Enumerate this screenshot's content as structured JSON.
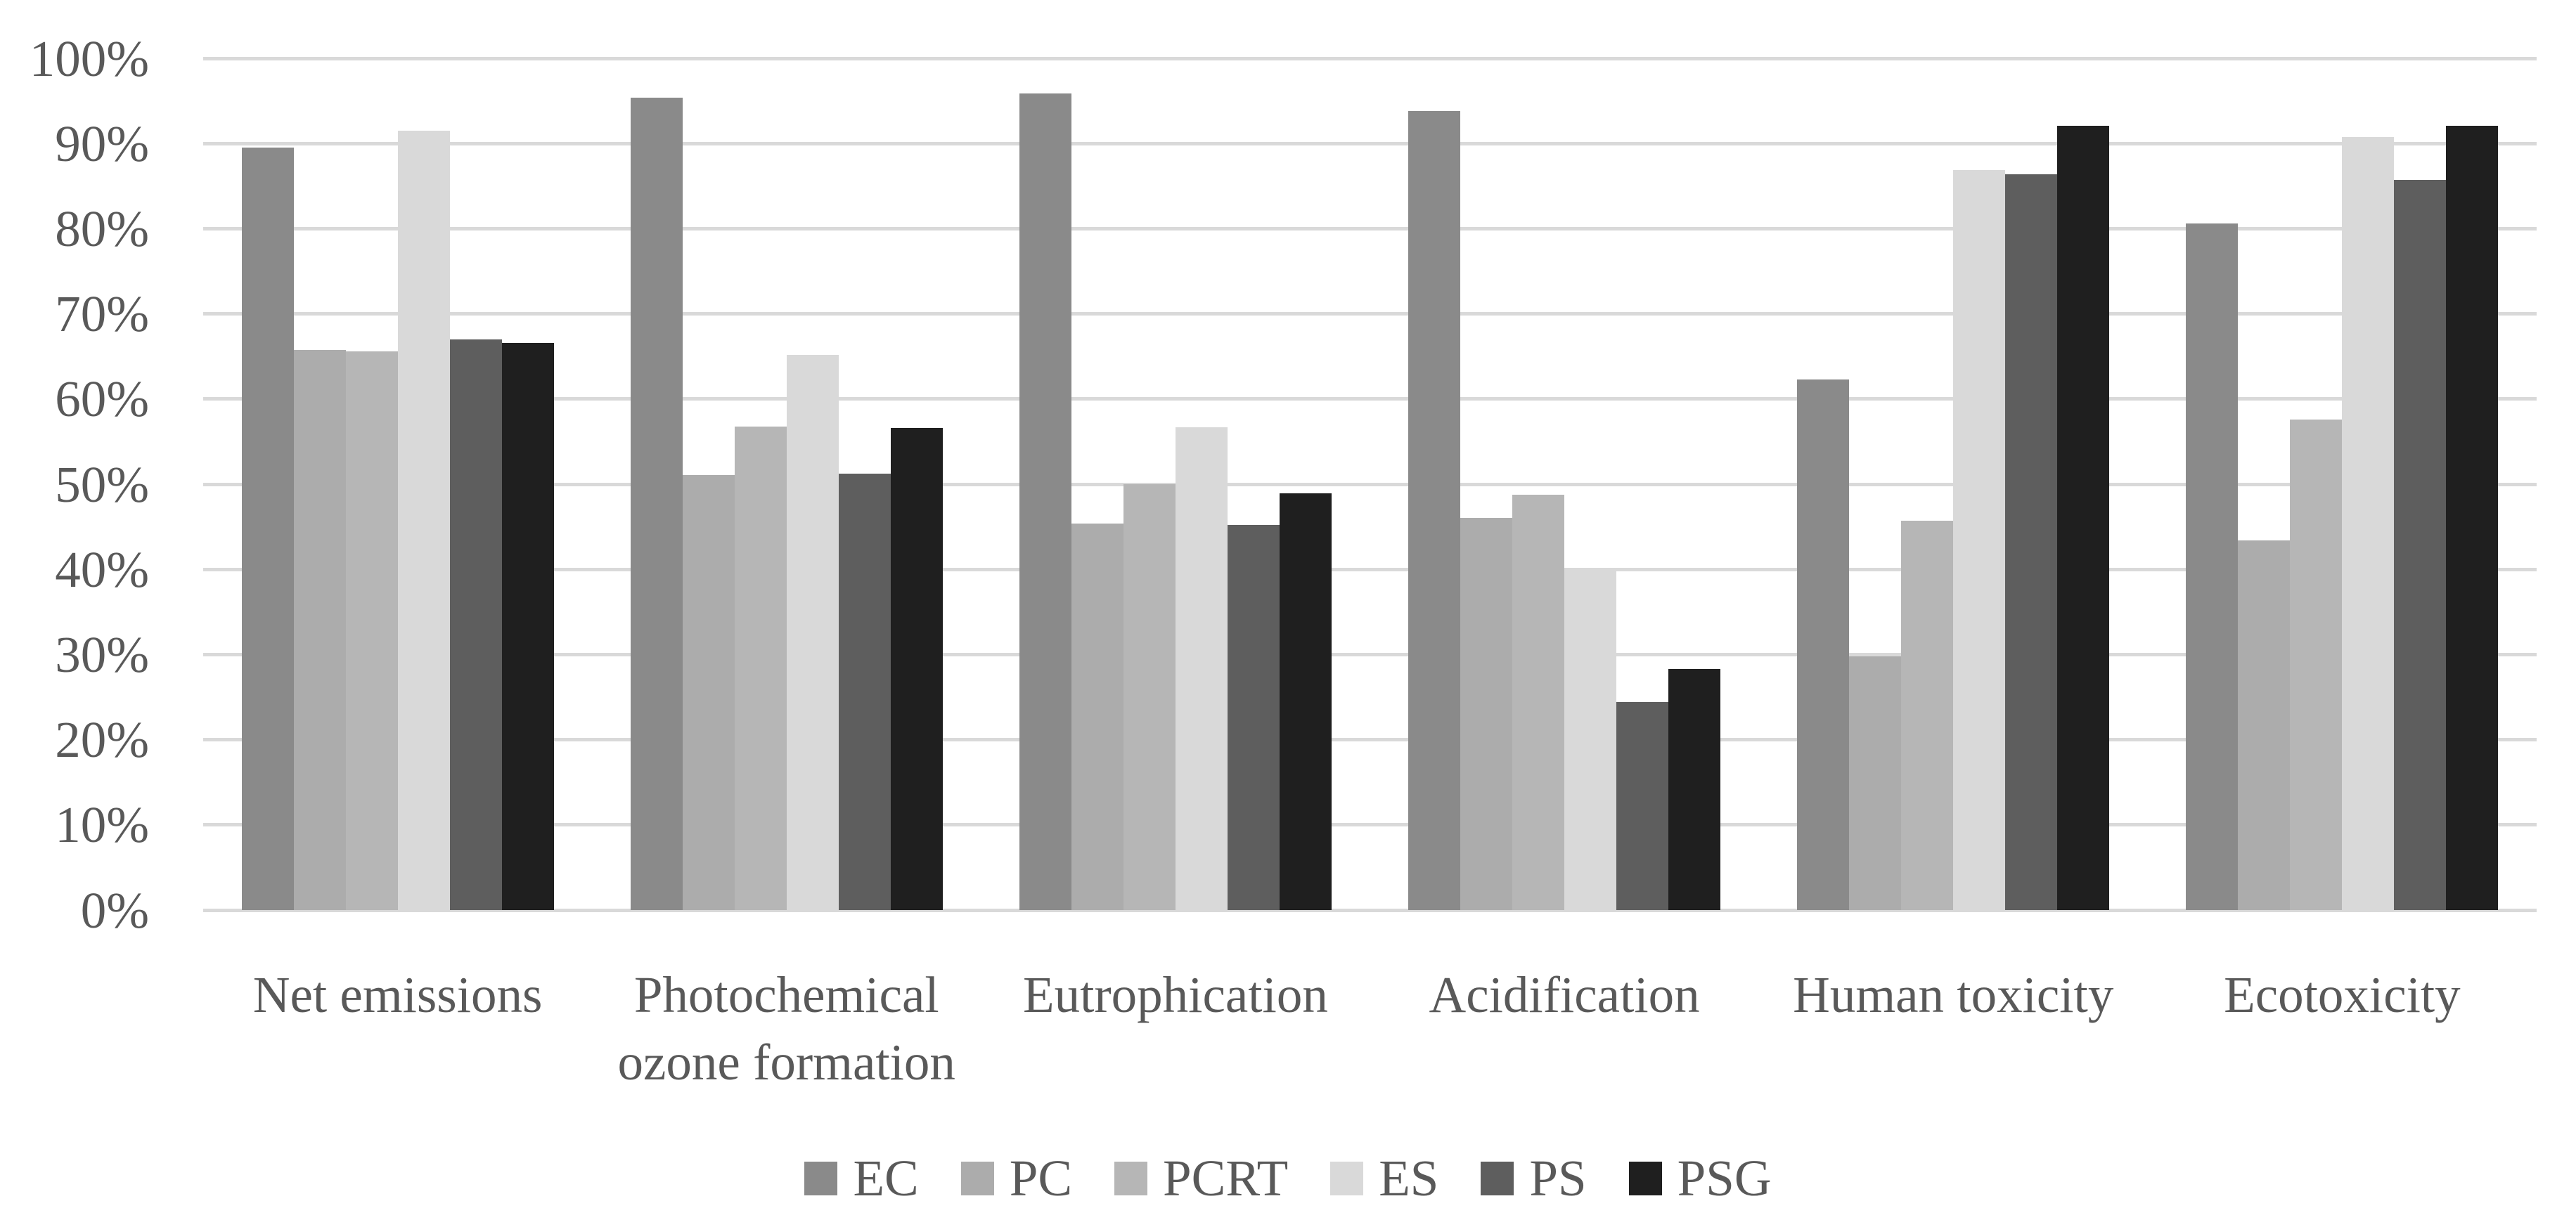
{
  "chart_data": {
    "type": "bar",
    "title": "",
    "categories": [
      "Net emissions",
      "Photochemical ozone formation",
      "Eutrophication",
      "Acidification",
      "Human toxicity",
      "Ecotoxicity"
    ],
    "series": [
      {
        "name": "EC",
        "color": "#8a8a8a",
        "values": [
          89.5,
          95.4,
          95.9,
          93.8,
          62.3,
          80.6
        ]
      },
      {
        "name": "PC",
        "color": "#acacac",
        "values": [
          65.8,
          51.1,
          45.4,
          46.0,
          29.8,
          43.4
        ]
      },
      {
        "name": "PCRT",
        "color": "#b6b6b6",
        "values": [
          65.6,
          56.8,
          50.0,
          48.8,
          45.7,
          57.6
        ]
      },
      {
        "name": "ES",
        "color": "#d9d9d9",
        "values": [
          91.5,
          65.2,
          56.7,
          39.8,
          86.9,
          90.8
        ]
      },
      {
        "name": "PS",
        "color": "#5e5e5e",
        "values": [
          67.0,
          51.2,
          45.2,
          24.4,
          86.4,
          85.7
        ]
      },
      {
        "name": "PSG",
        "color": "#1f1f1f",
        "values": [
          66.6,
          56.6,
          48.9,
          28.3,
          92.1,
          92.1
        ]
      }
    ],
    "y_axis": {
      "min": 0,
      "max": 100,
      "step": 10,
      "tick_labels": [
        "0%",
        "10%",
        "20%",
        "30%",
        "40%",
        "50%",
        "60%",
        "70%",
        "80%",
        "90%",
        "100%"
      ]
    },
    "legend": {
      "position": "bottom",
      "labels": [
        "EC",
        "PC",
        "PCRT",
        "ES",
        "PS",
        "PSG"
      ]
    },
    "grid": true,
    "gridline_color": "#d9d9d9",
    "text_color": "#595959",
    "background_color": "#ffffff"
  }
}
